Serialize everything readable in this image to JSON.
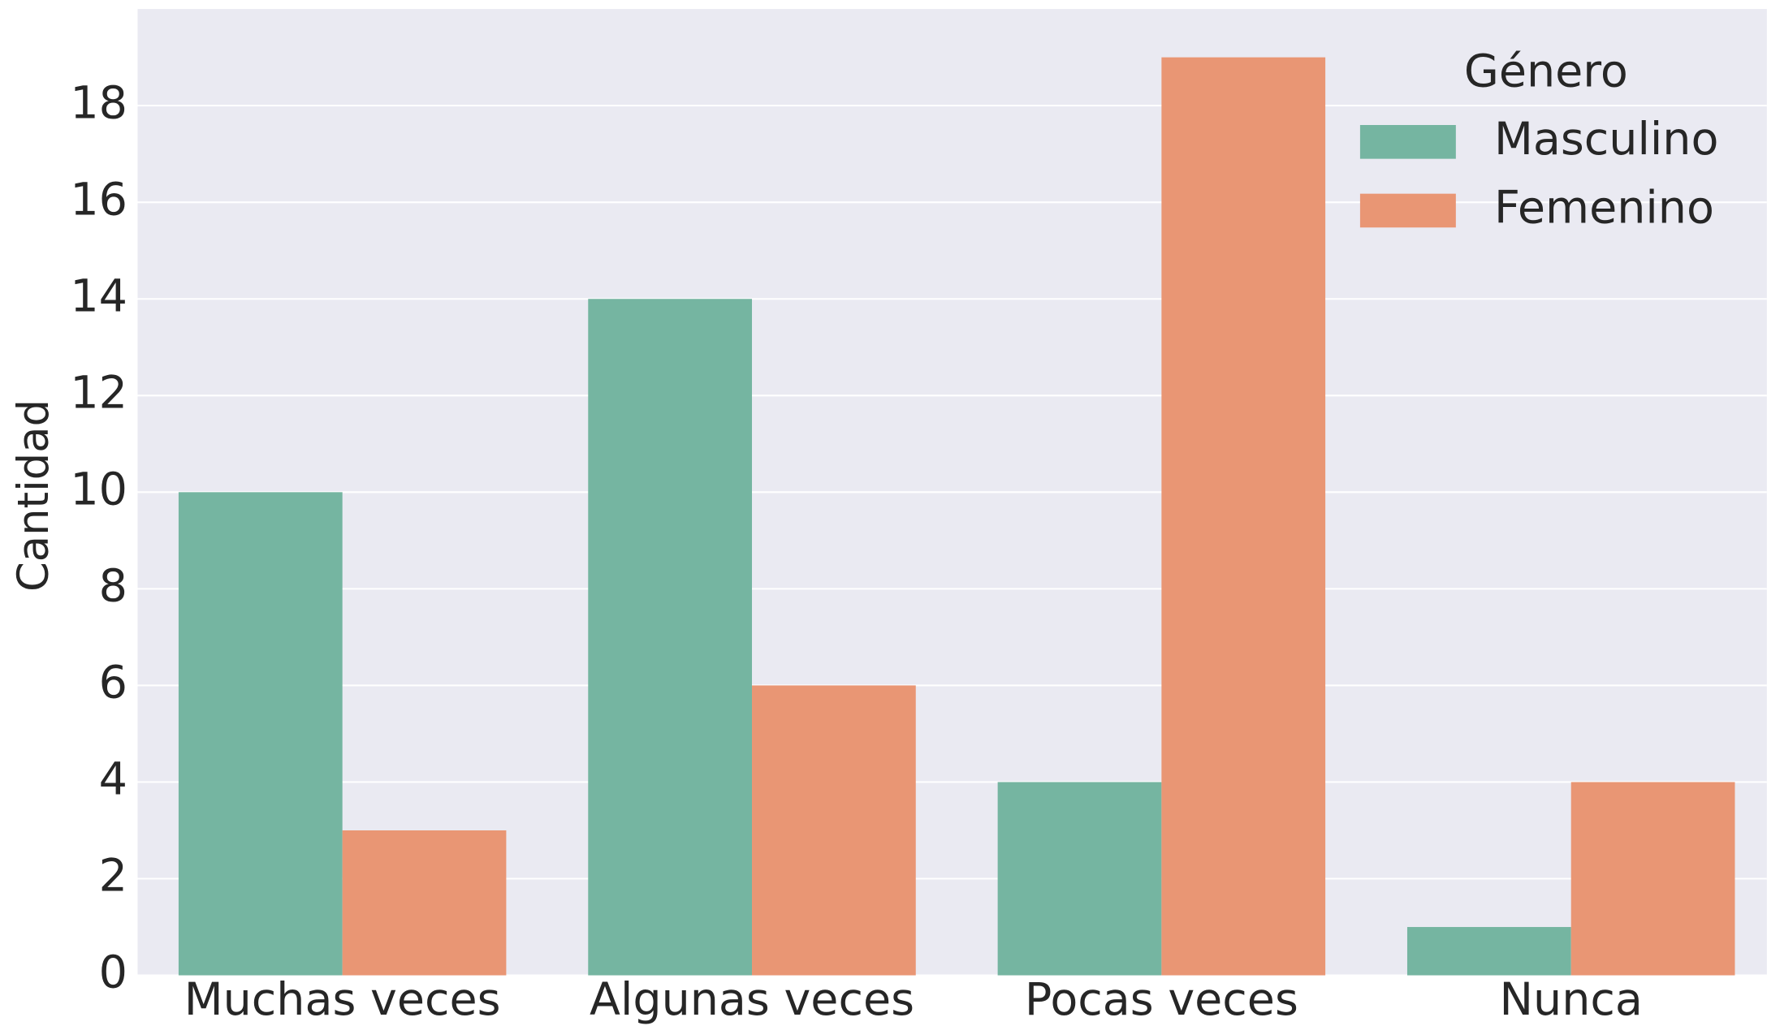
{
  "chart_data": {
    "type": "bar",
    "y_label": "Cantidad",
    "categories": [
      "Muchas veces",
      "Algunas veces",
      "Pocas veces",
      "Nunca"
    ],
    "series": [
      {
        "name": "Masculino",
        "color": "#75b5a1",
        "values": [
          10,
          14,
          4,
          1
        ]
      },
      {
        "name": "Femenino",
        "color": "#e99674",
        "values": [
          3,
          6,
          19,
          4
        ]
      }
    ],
    "legend_title": "Género",
    "legend": "upper right",
    "ylim": [
      0,
      20
    ],
    "yticks": [
      0,
      2,
      4,
      6,
      8,
      10,
      12,
      14,
      16,
      18
    ],
    "grid": true
  }
}
